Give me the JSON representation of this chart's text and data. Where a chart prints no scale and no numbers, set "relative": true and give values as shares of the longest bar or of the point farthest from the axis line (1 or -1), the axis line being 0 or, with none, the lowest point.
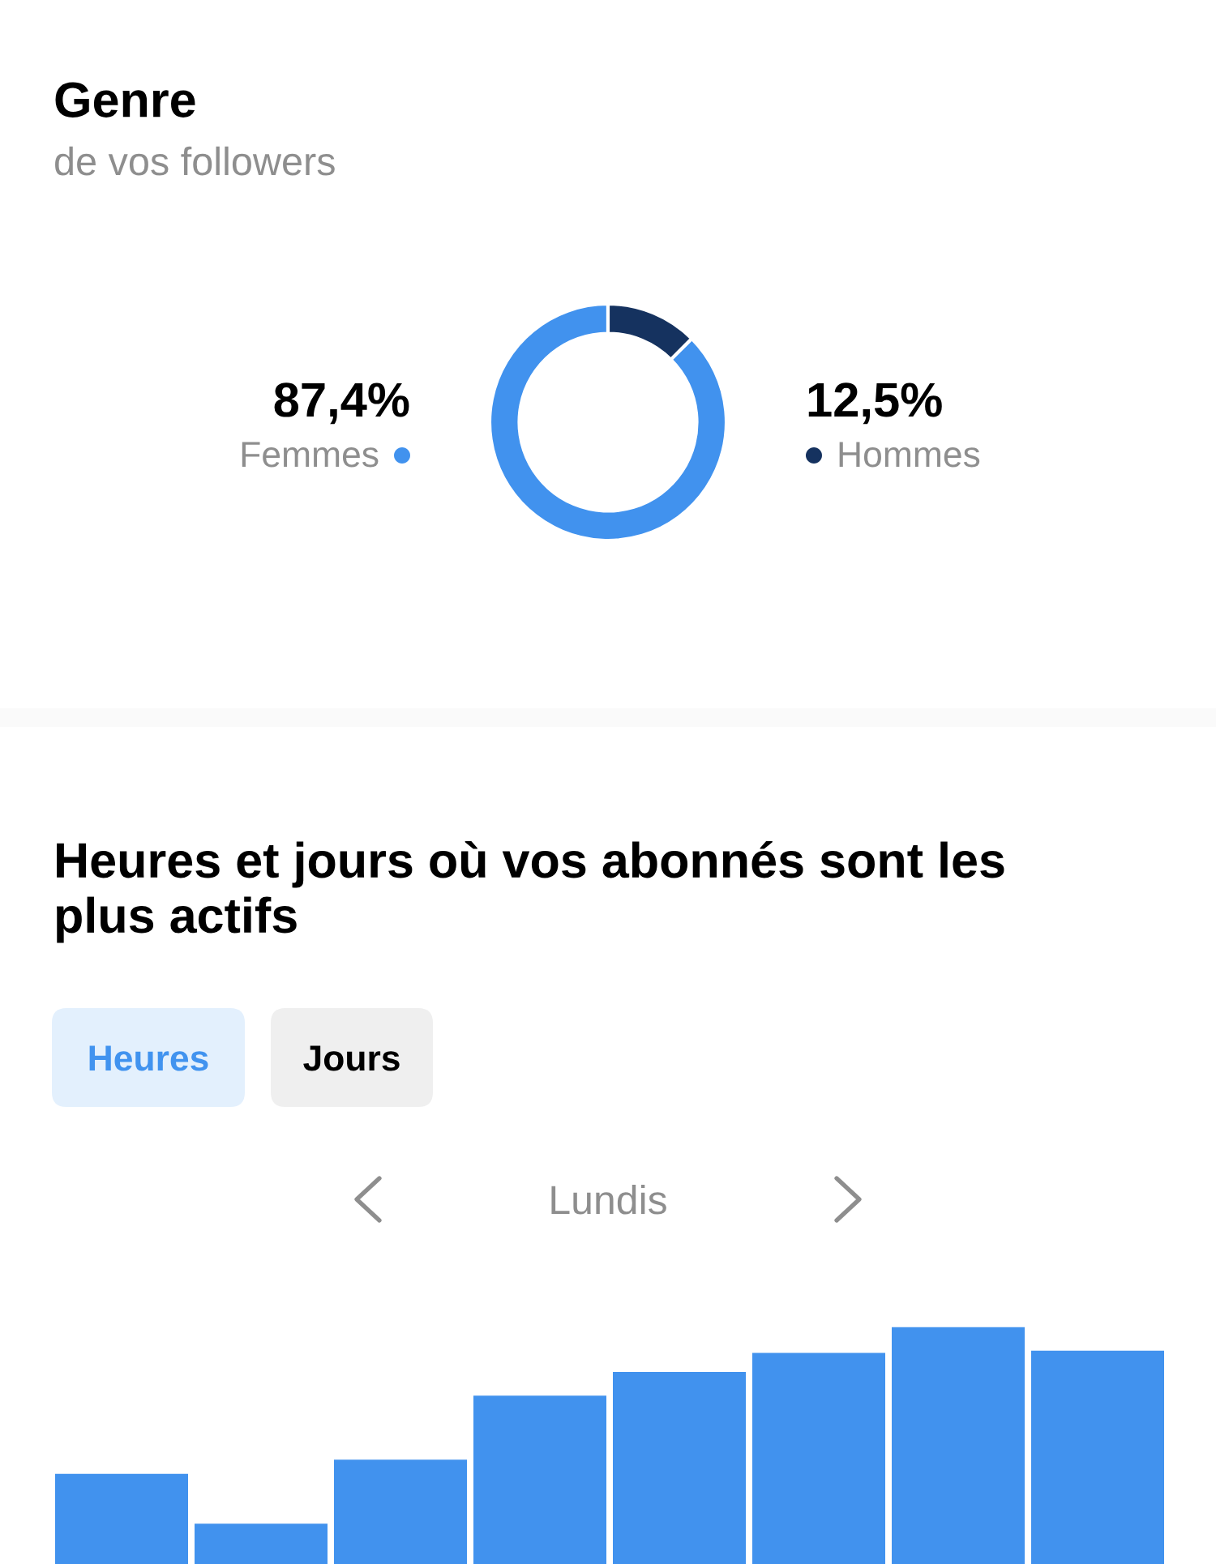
{
  "chart_data": [
    {
      "type": "donut",
      "title": "Genre",
      "subtitle": "de vos followers",
      "categories": [
        "Femmes",
        "Hommes"
      ],
      "values": [
        87.4,
        12.5
      ],
      "colors": [
        "#4192ee",
        "#15325f"
      ],
      "value_labels": [
        "87,4%",
        "12,5%"
      ]
    },
    {
      "type": "bar",
      "title": "Heures et jours où vos abonnés sont les plus actifs",
      "annotations": [
        "Heures",
        "Jours",
        "Lundis"
      ],
      "categories": [
        null,
        null,
        null,
        null,
        null,
        null,
        null,
        null
      ],
      "values": [
        0.38,
        0.17,
        0.44,
        0.71,
        0.81,
        0.89,
        1,
        0.9
      ],
      "color": "#4192ee",
      "relative": true
    }
  ]
}
